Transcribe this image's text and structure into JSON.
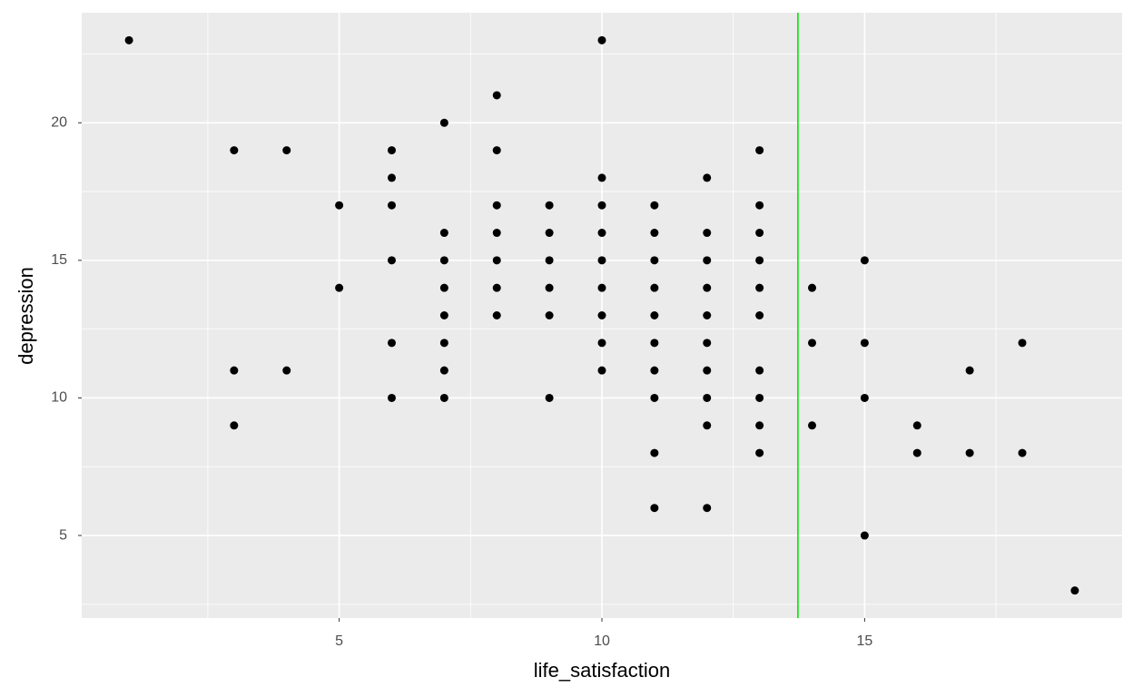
{
  "chart_data": {
    "type": "scatter",
    "x_label": "life_satisfaction",
    "y_label": "depression",
    "x": [
      1,
      3,
      3,
      3,
      4,
      4,
      5,
      5,
      6,
      6,
      6,
      6,
      6,
      6,
      7,
      7,
      7,
      7,
      7,
      7,
      7,
      7,
      8,
      8,
      8,
      8,
      8,
      8,
      8,
      9,
      9,
      9,
      9,
      9,
      9,
      10,
      10,
      10,
      10,
      10,
      10,
      10,
      10,
      10,
      11,
      11,
      11,
      11,
      11,
      11,
      11,
      11,
      11,
      11,
      12,
      12,
      12,
      12,
      12,
      12,
      12,
      12,
      12,
      12,
      13,
      13,
      13,
      13,
      13,
      13,
      13,
      13,
      13,
      13,
      14,
      14,
      14,
      15,
      15,
      15,
      15,
      16,
      16,
      17,
      17,
      18,
      18,
      19
    ],
    "values": [
      23,
      19,
      11,
      9,
      19,
      11,
      17,
      14,
      19,
      18,
      17,
      15,
      12,
      10,
      20,
      16,
      15,
      14,
      13,
      12,
      11,
      10,
      21,
      19,
      17,
      16,
      15,
      14,
      13,
      17,
      16,
      15,
      14,
      13,
      10,
      23,
      18,
      17,
      16,
      15,
      14,
      13,
      12,
      11,
      17,
      16,
      15,
      14,
      13,
      12,
      11,
      10,
      8,
      6,
      18,
      16,
      15,
      14,
      13,
      12,
      11,
      10,
      9,
      6,
      19,
      17,
      16,
      15,
      14,
      13,
      11,
      10,
      9,
      8,
      14,
      12,
      9,
      15,
      12,
      10,
      5,
      9,
      8,
      11,
      8,
      12,
      8,
      3
    ],
    "color": "#000000",
    "xlim": [
      0.1,
      19.9
    ],
    "xticks": [
      5,
      10,
      15
    ],
    "x_minor_ticks": [
      2.5,
      7.5,
      12.5,
      17.5
    ],
    "ylim": [
      2,
      24
    ],
    "yticks": [
      5,
      10,
      15,
      20
    ],
    "y_minor_ticks": [
      2.5,
      7.5,
      12.5,
      17.5,
      22.5
    ],
    "grid": true,
    "vline": {
      "x": 13.73,
      "color": "#00e600"
    }
  }
}
